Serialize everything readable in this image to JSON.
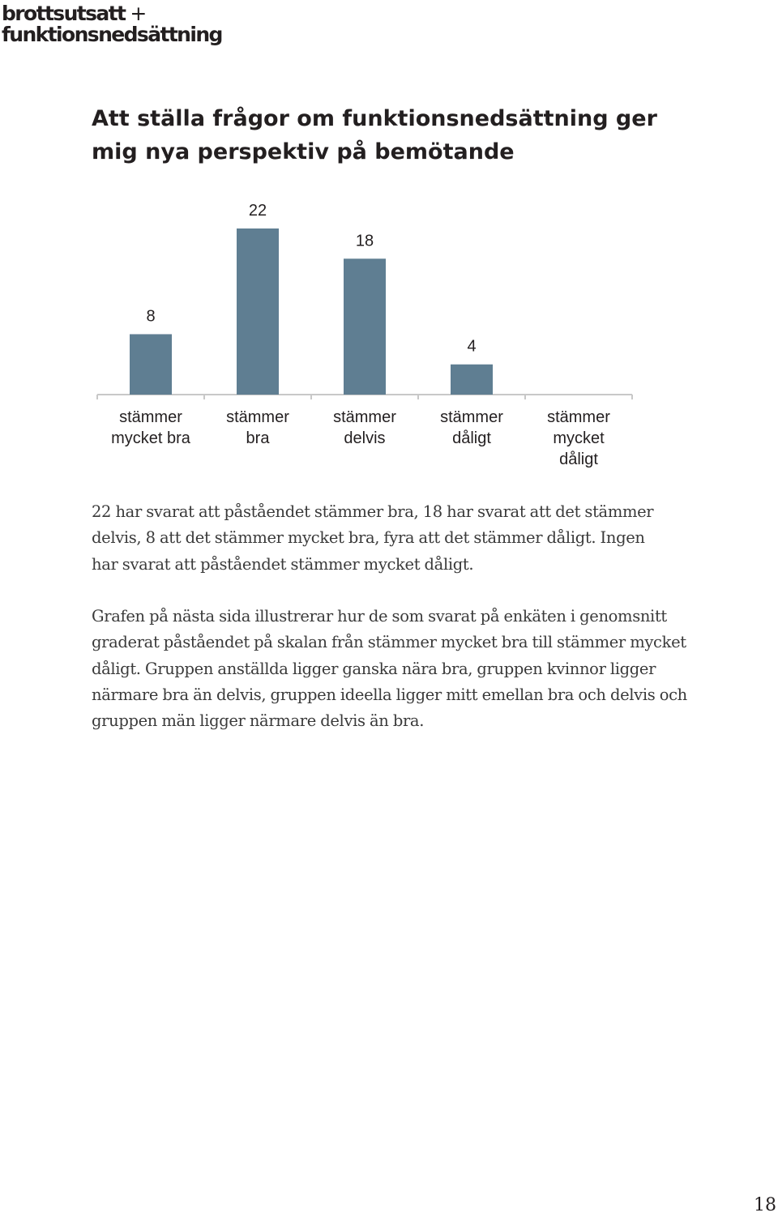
{
  "logo": {
    "line1": "brottsutsatt",
    "plus": "+",
    "line2": "funktionsnedsättning"
  },
  "heading": "Att ställa frågor om funktionsnedsättning ger mig nya perspektiv på bemötande",
  "chart_data": {
    "type": "bar",
    "categories": [
      [
        "stämmer",
        "mycket bra"
      ],
      [
        "stämmer",
        "bra"
      ],
      [
        "stämmer",
        "delvis"
      ],
      [
        "stämmer",
        "dåligt"
      ],
      [
        "stämmer",
        "mycket",
        "dåligt"
      ]
    ],
    "values": [
      8,
      22,
      18,
      4,
      0
    ],
    "data_labels": [
      "8",
      "22",
      "18",
      "4",
      ""
    ],
    "bar_color": "#5f7e92",
    "axis_color": "#c8c8c8",
    "ylim": [
      0,
      22
    ],
    "grid": false,
    "legend": "none",
    "title": "",
    "xlabel": "",
    "ylabel": ""
  },
  "paragraph1": "22 har svarat att påståendet stämmer bra, 18 har svarat att det stämmer delvis, 8 att det stämmer mycket bra, fyra att det stämmer dåligt. Ingen har svarat att påståendet stämmer mycket dåligt.",
  "paragraph2": "Grafen på nästa sida illustrerar hur de som svarat på enkäten i genomsnitt graderat påståendet på skalan från stämmer mycket bra till stämmer mycket dåligt. Gruppen anställda ligger ganska nära bra, gruppen kvinnor ligger närmare bra än delvis, gruppen ideella ligger mitt emellan bra och delvis och gruppen män ligger närmare delvis än bra.",
  "page_number": "18"
}
